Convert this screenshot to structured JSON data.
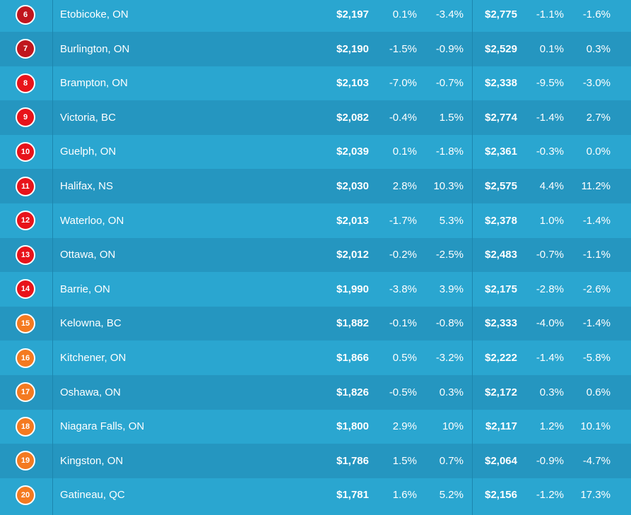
{
  "colors": {
    "dark_red": "#c0161e",
    "red": "#e8131a",
    "orange": "#f47a20"
  },
  "chart_data": {
    "type": "table",
    "rows": [
      {
        "rank": "6",
        "city": "Etobicoke, ON",
        "one_bed": "$2,197",
        "one_bed_mom": "0.1%",
        "one_bed_yoy": "-3.4%",
        "two_bed": "$2,775",
        "two_bed_mom": "-1.1%",
        "two_bed_yoy": "-1.6%",
        "color": "#c0161e"
      },
      {
        "rank": "7",
        "city": "Burlington, ON",
        "one_bed": "$2,190",
        "one_bed_mom": "-1.5%",
        "one_bed_yoy": "-0.9%",
        "two_bed": "$2,529",
        "two_bed_mom": "0.1%",
        "two_bed_yoy": "0.3%",
        "color": "#c0161e"
      },
      {
        "rank": "8",
        "city": "Brampton, ON",
        "one_bed": "$2,103",
        "one_bed_mom": "-7.0%",
        "one_bed_yoy": "-0.7%",
        "two_bed": "$2,338",
        "two_bed_mom": "-9.5%",
        "two_bed_yoy": "-3.0%",
        "color": "#e8131a"
      },
      {
        "rank": "9",
        "city": "Victoria, BC",
        "one_bed": "$2,082",
        "one_bed_mom": "-0.4%",
        "one_bed_yoy": "1.5%",
        "two_bed": "$2,774",
        "two_bed_mom": "-1.4%",
        "two_bed_yoy": "2.7%",
        "color": "#e8131a"
      },
      {
        "rank": "10",
        "city": "Guelph, ON",
        "one_bed": "$2,039",
        "one_bed_mom": "0.1%",
        "one_bed_yoy": "-1.8%",
        "two_bed": "$2,361",
        "two_bed_mom": "-0.3%",
        "two_bed_yoy": "0.0%",
        "color": "#e8131a"
      },
      {
        "rank": "11",
        "city": "Halifax, NS",
        "one_bed": "$2,030",
        "one_bed_mom": "2.8%",
        "one_bed_yoy": "10.3%",
        "two_bed": "$2,575",
        "two_bed_mom": "4.4%",
        "two_bed_yoy": "11.2%",
        "color": "#e8131a"
      },
      {
        "rank": "12",
        "city": "Waterloo, ON",
        "one_bed": "$2,013",
        "one_bed_mom": "-1.7%",
        "one_bed_yoy": "5.3%",
        "two_bed": "$2,378",
        "two_bed_mom": "1.0%",
        "two_bed_yoy": "-1.4%",
        "color": "#e8131a"
      },
      {
        "rank": "13",
        "city": "Ottawa, ON",
        "one_bed": "$2,012",
        "one_bed_mom": "-0.2%",
        "one_bed_yoy": "-2.5%",
        "two_bed": "$2,483",
        "two_bed_mom": "-0.7%",
        "two_bed_yoy": "-1.1%",
        "color": "#e8131a"
      },
      {
        "rank": "14",
        "city": "Barrie, ON",
        "one_bed": "$1,990",
        "one_bed_mom": "-3.8%",
        "one_bed_yoy": "3.9%",
        "two_bed": "$2,175",
        "two_bed_mom": "-2.8%",
        "two_bed_yoy": "-2.6%",
        "color": "#e8131a"
      },
      {
        "rank": "15",
        "city": "Kelowna, BC",
        "one_bed": "$1,882",
        "one_bed_mom": "-0.1%",
        "one_bed_yoy": "-0.8%",
        "two_bed": "$2,333",
        "two_bed_mom": "-4.0%",
        "two_bed_yoy": "-1.4%",
        "color": "#f47a20"
      },
      {
        "rank": "16",
        "city": "Kitchener, ON",
        "one_bed": "$1,866",
        "one_bed_mom": "0.5%",
        "one_bed_yoy": "-3.2%",
        "two_bed": "$2,222",
        "two_bed_mom": "-1.4%",
        "two_bed_yoy": "-5.8%",
        "color": "#f47a20"
      },
      {
        "rank": "17",
        "city": "Oshawa, ON",
        "one_bed": "$1,826",
        "one_bed_mom": "-0.5%",
        "one_bed_yoy": "0.3%",
        "two_bed": "$2,172",
        "two_bed_mom": "0.3%",
        "two_bed_yoy": "0.6%",
        "color": "#f47a20"
      },
      {
        "rank": "18",
        "city": "Niagara Falls, ON",
        "one_bed": "$1,800",
        "one_bed_mom": "2.9%",
        "one_bed_yoy": "10%",
        "two_bed": "$2,117",
        "two_bed_mom": "1.2%",
        "two_bed_yoy": "10.1%",
        "color": "#f47a20"
      },
      {
        "rank": "19",
        "city": "Kingston, ON",
        "one_bed": "$1,786",
        "one_bed_mom": "1.5%",
        "one_bed_yoy": "0.7%",
        "two_bed": "$2,064",
        "two_bed_mom": "-0.9%",
        "two_bed_yoy": "-4.7%",
        "color": "#f47a20"
      },
      {
        "rank": "20",
        "city": "Gatineau, QC",
        "one_bed": "$1,781",
        "one_bed_mom": "1.6%",
        "one_bed_yoy": "5.2%",
        "two_bed": "$2,156",
        "two_bed_mom": "-1.2%",
        "two_bed_yoy": "17.3%",
        "color": "#f47a20"
      }
    ]
  }
}
